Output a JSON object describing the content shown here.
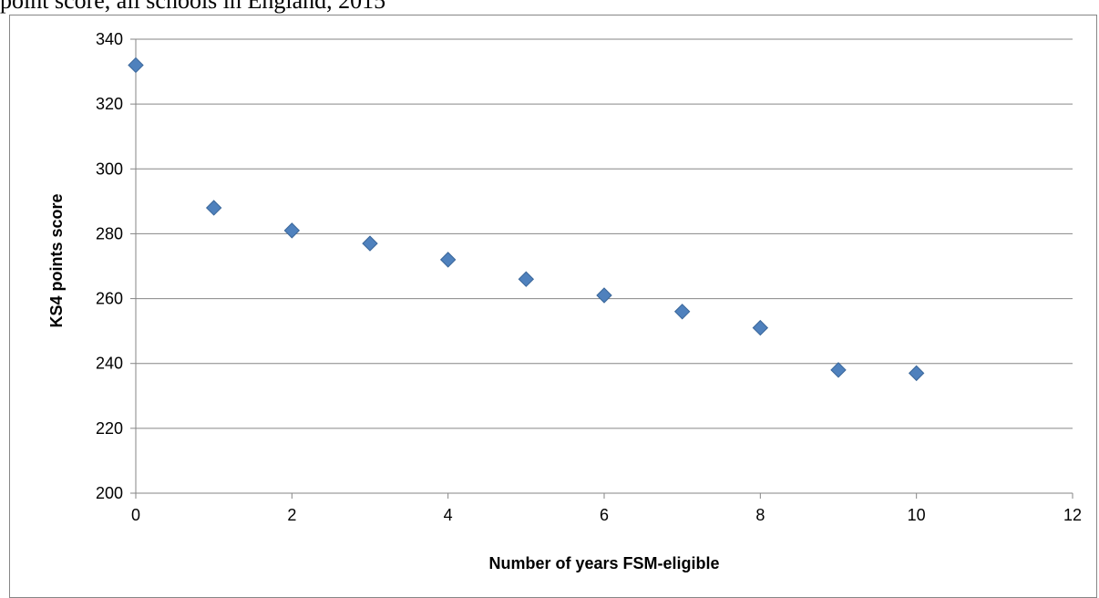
{
  "caption": "point score, all schools in England, 2015",
  "chart_data": {
    "type": "scatter",
    "title": "",
    "xlabel": "Number of years FSM-eligible",
    "ylabel": "KS4 points score",
    "xlim": [
      0,
      12
    ],
    "ylim": [
      200,
      340
    ],
    "x_ticks": [
      0,
      2,
      4,
      6,
      8,
      10,
      12
    ],
    "y_ticks": [
      200,
      220,
      240,
      260,
      280,
      300,
      320,
      340
    ],
    "grid": "horizontal",
    "marker": "diamond",
    "marker_color": "#4f81bd",
    "marker_edge_color": "#3a6699",
    "points": [
      {
        "x": 0,
        "y": 332
      },
      {
        "x": 1,
        "y": 288
      },
      {
        "x": 2,
        "y": 281
      },
      {
        "x": 3,
        "y": 277
      },
      {
        "x": 4,
        "y": 272
      },
      {
        "x": 5,
        "y": 266
      },
      {
        "x": 6,
        "y": 261
      },
      {
        "x": 7,
        "y": 256
      },
      {
        "x": 8,
        "y": 251
      },
      {
        "x": 9,
        "y": 238
      },
      {
        "x": 10,
        "y": 237
      }
    ]
  }
}
